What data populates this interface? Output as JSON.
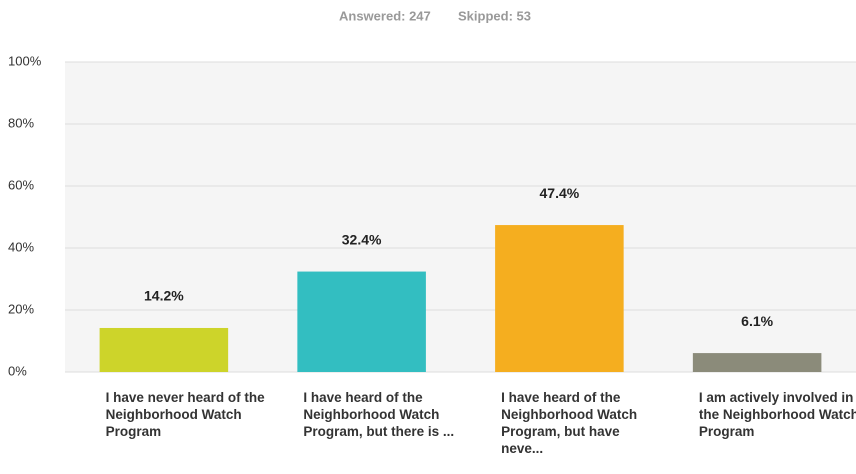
{
  "chart_data": {
    "type": "bar",
    "answered": "Answered: 247",
    "skipped": "Skipped: 53",
    "categories": [
      "I have never heard of the Neighborhood Watch Program",
      "I have heard of the Neighborhood Watch Program, but there is ...",
      "I have heard of the Neighborhood Watch Program, but have neve...",
      "I am actively involved in the Neighborhood Watch Program"
    ],
    "values": [
      14.2,
      32.4,
      47.4,
      6.1
    ],
    "value_labels": [
      "14.2%",
      "32.4%",
      "47.4%",
      "6.1%"
    ],
    "colors": [
      "#cdd42a",
      "#33bec1",
      "#f5ae1f",
      "#8b8b7a"
    ],
    "ylim": [
      0,
      100
    ],
    "yticks": [
      {
        "value": 0,
        "label": "0%"
      },
      {
        "value": 20,
        "label": "20%"
      },
      {
        "value": 40,
        "label": "40%"
      },
      {
        "value": 60,
        "label": "60%"
      },
      {
        "value": 80,
        "label": "80%"
      },
      {
        "value": 100,
        "label": "100%"
      }
    ],
    "grid": true
  }
}
